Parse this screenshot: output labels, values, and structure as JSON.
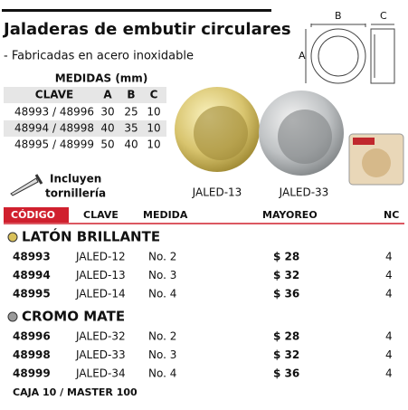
{
  "header": {
    "title": "Jaladeras de embutir",
    "title_bold": "circulares",
    "subtitle": "- Fabricadas en acero inoxidable"
  },
  "diagram": {
    "labels": [
      "A",
      "B",
      "C"
    ]
  },
  "measures": {
    "title": "MEDIDAS (mm)",
    "columns": [
      "CLAVE",
      "A",
      "B",
      "C"
    ],
    "rows": [
      [
        "48993 / 48996",
        "30",
        "25",
        "10"
      ],
      [
        "48994 / 48998",
        "40",
        "35",
        "10"
      ],
      [
        "48995 / 48999",
        "50",
        "40",
        "10"
      ]
    ]
  },
  "note": [
    "Incluyen",
    "tornillería"
  ],
  "images": [
    "JALED-13",
    "JALED-33"
  ],
  "table": {
    "columns": [
      "CÓDIGO",
      "CLAVE",
      "MEDIDA",
      "MAYOREO",
      "NC"
    ],
    "sections": [
      {
        "name": "LATÓN BRILLANTE",
        "rows": [
          [
            "48993",
            "JALED-12",
            "No. 2",
            "$ 28",
            "4"
          ],
          [
            "48994",
            "JALED-13",
            "No. 3",
            "$ 32",
            "4"
          ],
          [
            "48995",
            "JALED-14",
            "No. 4",
            "$ 36",
            "4"
          ]
        ]
      },
      {
        "name": "CROMO MATE",
        "rows": [
          [
            "48996",
            "JALED-32",
            "No. 2",
            "$ 28",
            "4"
          ],
          [
            "48998",
            "JALED-33",
            "No. 3",
            "$ 32",
            "4"
          ],
          [
            "48999",
            "JALED-34",
            "No. 4",
            "$ 36",
            "4"
          ]
        ]
      }
    ]
  },
  "footer": "CAJA 10 / MASTER 100"
}
